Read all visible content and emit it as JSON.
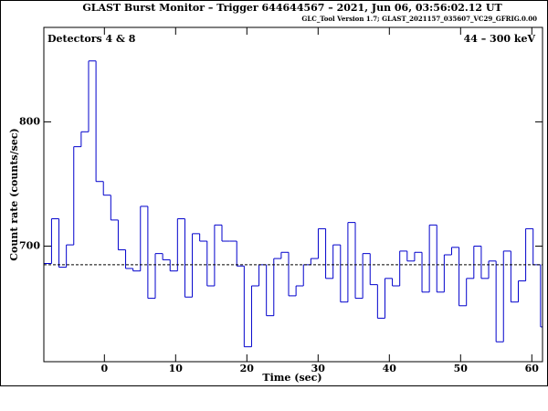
{
  "chart_data": {
    "type": "histogram",
    "title": "GLAST Burst Monitor  –  Trigger 644644567  –  2021, Jun 06, 03:56:02.12 UT",
    "subtitle": "GLC_Tool Version 1.7; GLAST_2021157_035607_VC29_GFRIG.0.00",
    "annotations": [
      "Detectors 4 & 8",
      "44 – 300 keV"
    ],
    "xlabel": "Time (sec)",
    "ylabel": "Count rate (counts/sec)",
    "bins": [
      -8.46,
      -7.42,
      -6.38,
      -5.34,
      -4.3,
      -3.26,
      -2.22,
      -1.18,
      -0.14,
      0.9,
      1.94,
      2.98,
      4.02,
      5.06,
      6.1,
      7.14,
      8.18,
      9.22,
      10.26,
      11.3,
      12.34,
      13.38,
      14.42,
      15.46,
      16.5,
      17.54,
      18.58,
      19.62,
      20.66,
      21.7,
      22.74,
      23.78,
      24.82,
      25.86,
      26.9,
      27.94,
      28.98,
      30.02,
      31.06,
      32.1,
      33.14,
      34.18,
      35.22,
      36.26,
      37.3,
      38.34,
      39.38,
      40.42,
      41.46,
      42.5,
      43.54,
      44.58,
      45.62,
      46.66,
      47.7,
      48.74,
      49.78,
      50.82,
      51.86,
      52.9,
      53.94,
      54.98,
      56.02,
      57.06,
      58.1,
      59.14,
      60.18,
      61.22,
      62.26
    ],
    "values": [
      686,
      722,
      683,
      701,
      780,
      792,
      849,
      752,
      741,
      721,
      697,
      682,
      680,
      732,
      658,
      694,
      689,
      680,
      722,
      659,
      710,
      704,
      668,
      717,
      704,
      704,
      684,
      619,
      668,
      685,
      644,
      690,
      695,
      660,
      668,
      685,
      690,
      714,
      674,
      701,
      655,
      719,
      658,
      694,
      669,
      642,
      674,
      668,
      696,
      688,
      695,
      663,
      717,
      663,
      693,
      699,
      652,
      674,
      700,
      674,
      688,
      623,
      696,
      655,
      672,
      714,
      685,
      635
    ],
    "color": "#0000cc",
    "background_level": 685,
    "xlim": [
      -8.5,
      61.5
    ],
    "ylim": [
      607,
      876
    ],
    "xticks": [
      0,
      10,
      20,
      30,
      40,
      50,
      60
    ],
    "yticks": [
      700,
      800
    ]
  }
}
